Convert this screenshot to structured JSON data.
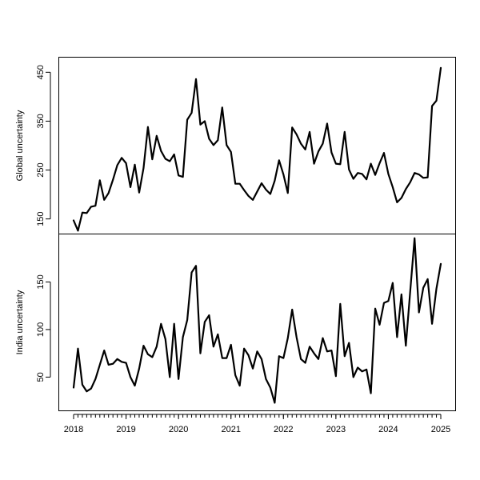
{
  "chart_data": [
    {
      "type": "line",
      "ylabel": "Global uncertainty",
      "xlabel": "",
      "yticks": [
        150,
        250,
        350,
        450
      ],
      "ylim": [
        120,
        480
      ],
      "values": [
        147,
        126,
        163,
        162,
        175,
        177,
        229,
        189,
        203,
        230,
        260,
        275,
        264,
        215,
        261,
        204,
        254,
        338,
        272,
        320,
        289,
        273,
        268,
        282,
        239,
        236,
        353,
        367,
        436,
        343,
        350,
        314,
        301,
        311,
        378,
        301,
        287,
        222,
        222,
        209,
        197,
        189,
        206,
        223,
        210,
        201,
        228,
        270,
        241,
        203,
        337,
        323,
        304,
        292,
        328,
        263,
        288,
        304,
        345,
        286,
        263,
        262,
        328,
        251,
        232,
        244,
        242,
        231,
        263,
        240,
        264,
        285,
        242,
        215,
        184,
        193,
        211,
        225,
        244,
        241,
        234,
        235,
        381,
        392,
        459
      ]
    },
    {
      "type": "line",
      "ylabel": "India uncertainty",
      "xlabel": "",
      "yticks": [
        50,
        100,
        150
      ],
      "ylim": [
        15,
        200
      ],
      "x_ticks": [
        "2018",
        "2019",
        "2020",
        "2021",
        "2022",
        "2023",
        "2024",
        "2025"
      ],
      "start": "2018-01",
      "values": [
        39,
        80,
        42,
        35,
        38,
        48,
        63,
        78,
        63,
        64,
        69,
        66,
        65,
        50,
        41,
        59,
        83,
        74,
        71,
        82,
        106,
        90,
        50,
        106,
        48,
        92,
        110,
        160,
        167,
        75,
        108,
        115,
        82,
        95,
        70,
        70,
        84,
        52,
        41,
        80,
        73,
        59,
        77,
        69,
        48,
        39,
        23,
        72,
        70,
        91,
        121,
        92,
        69,
        65,
        82,
        75,
        69,
        91,
        77,
        78,
        51,
        127,
        72,
        86,
        50,
        60,
        56,
        58,
        33,
        122,
        105,
        128,
        130,
        149,
        92,
        137,
        83,
        140,
        196,
        118,
        144,
        153,
        106,
        143,
        169
      ]
    }
  ]
}
